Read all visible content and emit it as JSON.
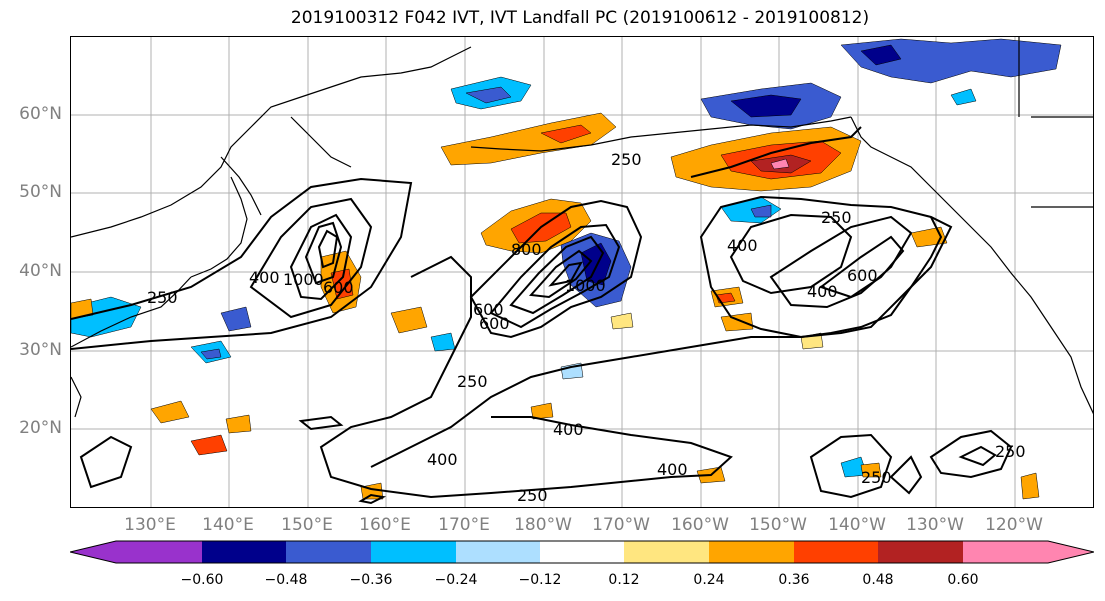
{
  "title": "2019100312 F042 IVT, IVT Landfall PC (2019100612 - 2019100812)",
  "lat_labels": [
    "60°N",
    "50°N",
    "40°N",
    "30°N",
    "20°N"
  ],
  "lon_labels": [
    "130°E",
    "140°E",
    "150°E",
    "160°E",
    "170°E",
    "180°W",
    "170°W",
    "160°W",
    "150°W",
    "140°W",
    "130°W",
    "120°W"
  ],
  "colorbar": {
    "tick_labels": [
      "−0.60",
      "−0.48",
      "−0.36",
      "−0.24",
      "−0.12",
      "0.12",
      "0.24",
      "0.36",
      "0.48",
      "0.60"
    ],
    "bins": [
      {
        "color": "#9932CC"
      },
      {
        "color": "#00008B"
      },
      {
        "color": "#3A5BD0"
      },
      {
        "color": "#00BFFF"
      },
      {
        "color": "#ADDFFF"
      },
      {
        "color": "#FFFFFF"
      },
      {
        "color": "#FFE680"
      },
      {
        "color": "#FFA500"
      },
      {
        "color": "#FF4000"
      },
      {
        "color": "#B22222"
      },
      {
        "color": "#FF85B0"
      }
    ]
  },
  "contour_labels": [
    {
      "text": "250"
    },
    {
      "text": "250"
    },
    {
      "text": "250"
    },
    {
      "text": "250"
    },
    {
      "text": "250"
    },
    {
      "text": "250"
    },
    {
      "text": "250"
    },
    {
      "text": "400"
    },
    {
      "text": "400"
    },
    {
      "text": "400"
    },
    {
      "text": "400"
    },
    {
      "text": "400"
    },
    {
      "text": "400"
    },
    {
      "text": "600"
    },
    {
      "text": "600"
    },
    {
      "text": "600"
    },
    {
      "text": "800"
    },
    {
      "text": "1000"
    },
    {
      "text": "1000"
    },
    {
      "text": "600"
    }
  ],
  "colors": {
    "negative_strong": "#00008B",
    "negative_mid": "#3A5BD0",
    "negative_light": "#00BFFF",
    "positive_light": "#FFE680",
    "positive_mid": "#FFA500",
    "positive_strong": "#FF4000",
    "positive_max": "#B22222",
    "positive_extreme": "#FF85B0"
  }
}
